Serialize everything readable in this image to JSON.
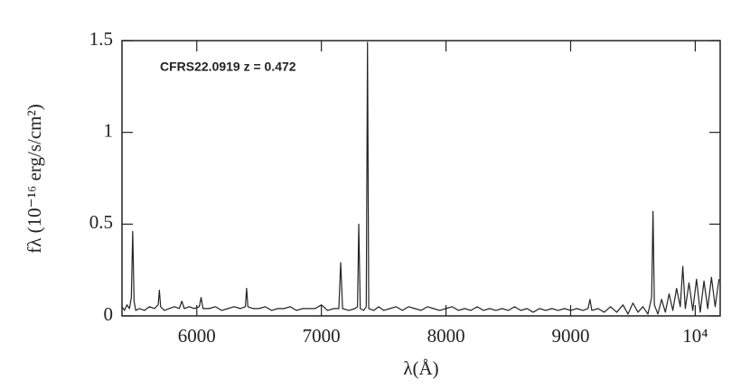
{
  "chart_data": {
    "type": "line",
    "annotation": "CFRS22.0919 z = 0.472",
    "x_label": "λ(Å)",
    "y_label": "fλ (10⁻¹⁶ erg/s/cm²)",
    "color": "#222222",
    "xlim": [
      5400,
      10200
    ],
    "ylim": [
      0,
      1.5
    ],
    "xticks": [
      6000,
      7000,
      8000,
      9000,
      {
        "value": 10000,
        "label": "10⁴"
      }
    ],
    "yticks": [
      0,
      0.5,
      1,
      1.5
    ],
    "x": [
      5400,
      5420,
      5440,
      5460,
      5475,
      5486,
      5497,
      5510,
      5540,
      5580,
      5620,
      5660,
      5690,
      5700,
      5710,
      5740,
      5780,
      5820,
      5860,
      5880,
      5900,
      5940,
      5980,
      6020,
      6035,
      6050,
      6100,
      6150,
      6200,
      6250,
      6300,
      6350,
      6390,
      6400,
      6410,
      6450,
      6500,
      6550,
      6600,
      6650,
      6700,
      6750,
      6800,
      6850,
      6900,
      6950,
      7000,
      7050,
      7100,
      7140,
      7155,
      7170,
      7220,
      7270,
      7290,
      7300,
      7312,
      7340,
      7360,
      7370,
      7380,
      7420,
      7460,
      7500,
      7550,
      7600,
      7650,
      7700,
      7750,
      7800,
      7850,
      7900,
      7950,
      8000,
      8050,
      8100,
      8150,
      8200,
      8250,
      8300,
      8350,
      8400,
      8450,
      8500,
      8550,
      8600,
      8650,
      8700,
      8750,
      8800,
      8850,
      8900,
      8950,
      9000,
      9050,
      9100,
      9140,
      9155,
      9170,
      9220,
      9270,
      9320,
      9370,
      9420,
      9460,
      9500,
      9540,
      9580,
      9620,
      9650,
      9661,
      9672,
      9700,
      9730,
      9760,
      9790,
      9820,
      9850,
      9880,
      9900,
      9920,
      9950,
      9980,
      10010,
      10040,
      10070,
      10100,
      10130,
      10160,
      10190
    ],
    "values": [
      0.05,
      0.03,
      0.06,
      0.04,
      0.1,
      0.46,
      0.08,
      0.03,
      0.04,
      0.03,
      0.05,
      0.04,
      0.06,
      0.14,
      0.05,
      0.03,
      0.04,
      0.05,
      0.04,
      0.08,
      0.04,
      0.05,
      0.04,
      0.05,
      0.1,
      0.04,
      0.04,
      0.05,
      0.03,
      0.04,
      0.05,
      0.04,
      0.05,
      0.15,
      0.05,
      0.04,
      0.04,
      0.05,
      0.03,
      0.04,
      0.04,
      0.05,
      0.03,
      0.04,
      0.04,
      0.04,
      0.06,
      0.03,
      0.04,
      0.04,
      0.29,
      0.04,
      0.03,
      0.04,
      0.05,
      0.5,
      0.04,
      0.03,
      0.05,
      1.49,
      0.04,
      0.03,
      0.05,
      0.03,
      0.04,
      0.05,
      0.03,
      0.05,
      0.04,
      0.03,
      0.05,
      0.04,
      0.03,
      0.04,
      0.05,
      0.03,
      0.04,
      0.03,
      0.05,
      0.03,
      0.04,
      0.03,
      0.04,
      0.03,
      0.05,
      0.03,
      0.04,
      0.02,
      0.04,
      0.03,
      0.04,
      0.03,
      0.04,
      0.03,
      0.04,
      0.03,
      0.04,
      0.09,
      0.03,
      0.04,
      0.02,
      0.05,
      0.02,
      0.06,
      0.01,
      0.07,
      0.02,
      0.05,
      0.01,
      0.1,
      0.57,
      0.06,
      0.01,
      0.09,
      0.02,
      0.12,
      0.03,
      0.15,
      0.05,
      0.27,
      0.04,
      0.18,
      0.03,
      0.2,
      0.02,
      0.19,
      0.04,
      0.21,
      0.05,
      0.2
    ]
  }
}
